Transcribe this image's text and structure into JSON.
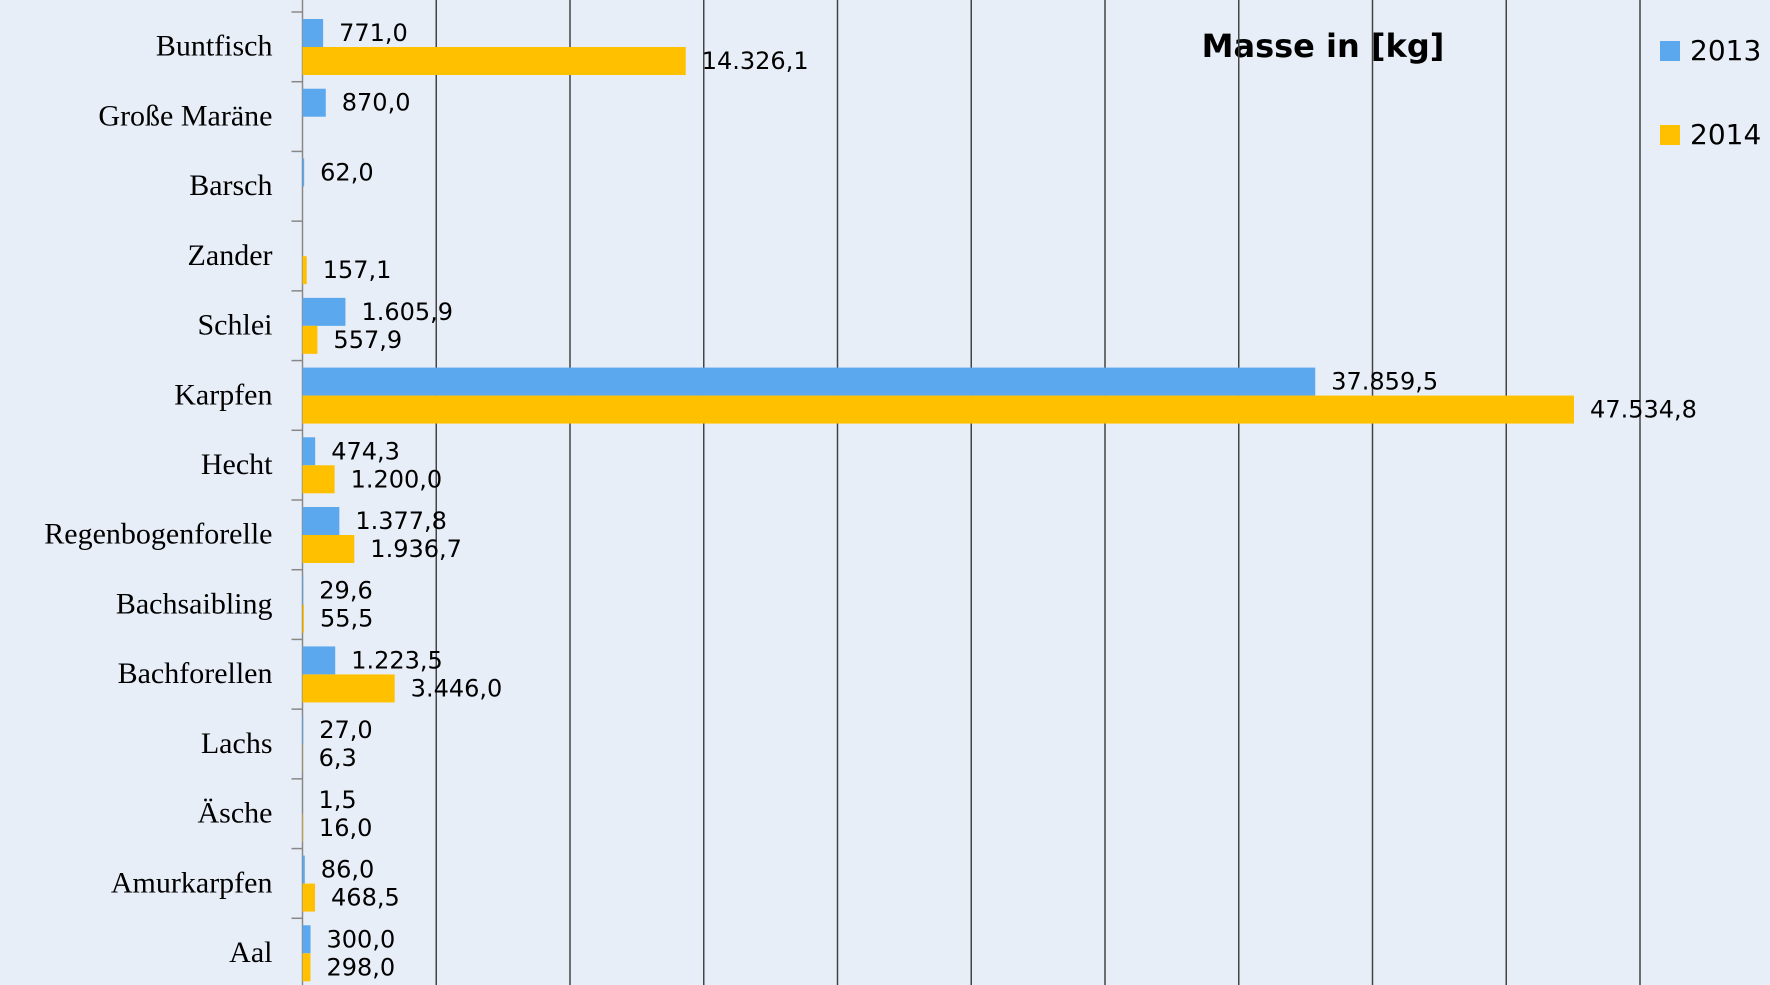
{
  "chart_data": {
    "type": "bar",
    "orientation": "horizontal",
    "title": "Masse in [kg]",
    "categories": [
      "Buntfisch",
      "Große Maräne",
      "Barsch",
      "Zander",
      "Schlei",
      "Karpfen",
      "Hecht",
      "Regenbogenforelle",
      "Bachsaibling",
      "Bachforellen",
      "Lachs",
      "Äsche",
      "Amurkarpfen",
      "Aal"
    ],
    "series": [
      {
        "name": "2013",
        "color": "#5ba8ef",
        "values": [
          771.0,
          870.0,
          62.0,
          null,
          1605.9,
          37859.5,
          474.3,
          1377.8,
          29.6,
          1223.5,
          27.0,
          1.5,
          86.0,
          300.0
        ],
        "value_labels": [
          "771,0",
          "870,0",
          "62,0",
          null,
          "1.605,9",
          "37.859,5",
          "474,3",
          "1.377,8",
          "29,6",
          "1.223,5",
          "27,0",
          "1,5",
          "86,0",
          "300,0"
        ]
      },
      {
        "name": "2014",
        "color": "#ffc000",
        "values": [
          14326.1,
          null,
          null,
          157.1,
          557.9,
          47534.8,
          1200.0,
          1936.7,
          55.5,
          3446.0,
          6.3,
          16.0,
          468.5,
          298.0
        ],
        "value_labels": [
          "14.326,1",
          null,
          null,
          "157,1",
          "557,9",
          "47.534,8",
          "1.200,0",
          "1.936,7",
          "55,5",
          "3.446,0",
          "6,3",
          "16,0",
          "468,5",
          "298,0"
        ]
      }
    ],
    "xlim": [
      0,
      50000
    ],
    "xticks": [
      0,
      5000,
      10000,
      15000,
      20000,
      25000,
      30000,
      35000,
      40000,
      45000,
      50000
    ],
    "grid": true,
    "legend": "upper right"
  }
}
